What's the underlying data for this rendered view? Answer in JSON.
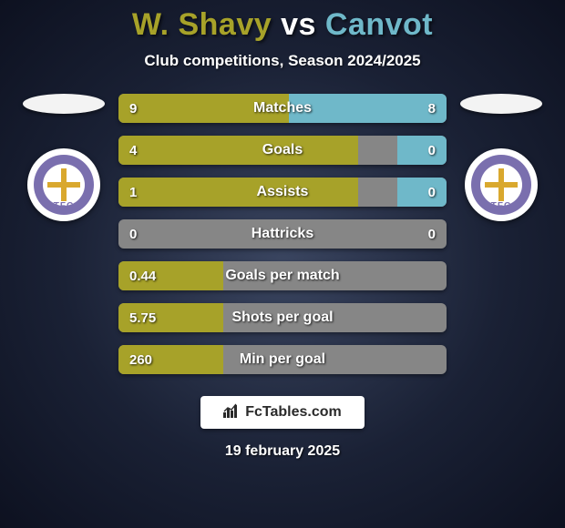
{
  "title": {
    "player1": "W. Shavy",
    "vs": "vs",
    "player2": "Canvot",
    "player1_color": "#a7a229",
    "vs_color": "#ffffff",
    "player2_color": "#6fb8c9"
  },
  "subtitle": "Club competitions, Season 2024/2025",
  "kit_colors": {
    "left": "#f3f3f3",
    "right": "#f3f3f3"
  },
  "crest": {
    "ring_color": "#7a6fae",
    "center_bg": "#ffffff",
    "cross_color": "#d9a82e",
    "text": "TFC",
    "text_color": "#7a6fae"
  },
  "bars": {
    "left_color": "#a7a229",
    "right_color": "#6fb8c9",
    "track_color": "#868686",
    "label_fontsize": 16,
    "value_fontsize": 15,
    "rows": [
      {
        "label": "Matches",
        "left": "9",
        "right": "8",
        "lw": 52,
        "rw": 48
      },
      {
        "label": "Goals",
        "left": "4",
        "right": "0",
        "lw": 73,
        "rw": 15
      },
      {
        "label": "Assists",
        "left": "1",
        "right": "0",
        "lw": 73,
        "rw": 15
      },
      {
        "label": "Hattricks",
        "left": "0",
        "right": "0",
        "lw": 0,
        "rw": 0
      },
      {
        "label": "Goals per match",
        "left": "0.44",
        "right": "",
        "lw": 32,
        "rw": 0
      },
      {
        "label": "Shots per goal",
        "left": "5.75",
        "right": "",
        "lw": 32,
        "rw": 0
      },
      {
        "label": "Min per goal",
        "left": "260",
        "right": "",
        "lw": 32,
        "rw": 0
      }
    ]
  },
  "footer": {
    "brand": "FcTables.com",
    "date": "19 february 2025"
  }
}
